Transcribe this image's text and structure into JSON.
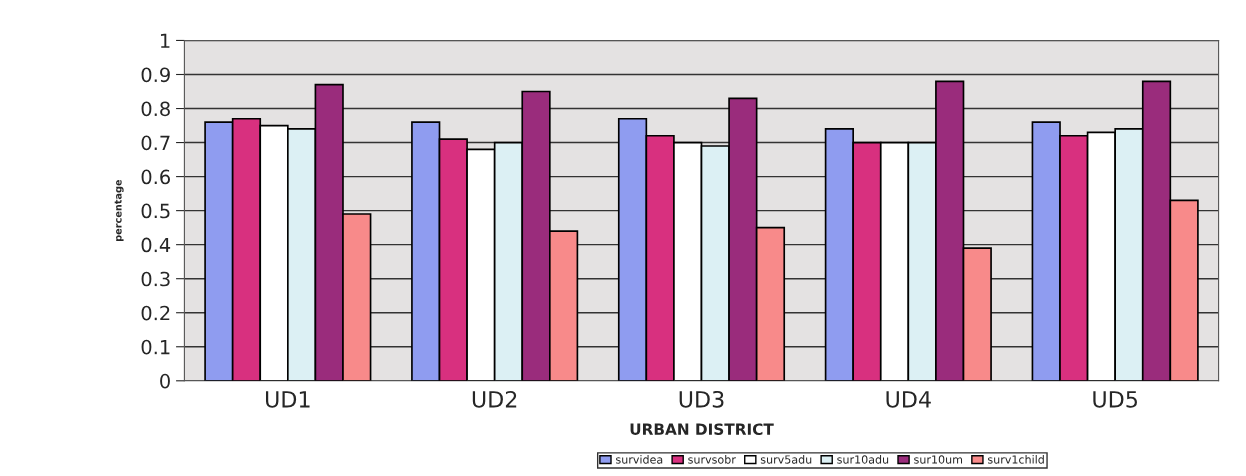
{
  "chart_data": {
    "type": "bar",
    "xlabel": "URBAN DISTRICT",
    "ylabel": "percentage",
    "categories": [
      "UD1",
      "UD2",
      "UD3",
      "UD4",
      "UD5"
    ],
    "series": [
      {
        "name": "survidea",
        "color": "#8f9cf0",
        "values": [
          0.76,
          0.76,
          0.77,
          0.74,
          0.76
        ]
      },
      {
        "name": "survsobr",
        "color": "#d8307f",
        "values": [
          0.77,
          0.71,
          0.72,
          0.7,
          0.72
        ]
      },
      {
        "name": "surv5adu",
        "color": "#ffffff",
        "values": [
          0.75,
          0.68,
          0.7,
          0.7,
          0.73
        ]
      },
      {
        "name": "sur10adu",
        "color": "#dcf0f4",
        "values": [
          0.74,
          0.7,
          0.69,
          0.7,
          0.74
        ]
      },
      {
        "name": "sur10um",
        "color": "#9a2c7c",
        "values": [
          0.87,
          0.85,
          0.83,
          0.88,
          0.88
        ]
      },
      {
        "name": "surv1child",
        "color": "#f88a8a",
        "values": [
          0.49,
          0.44,
          0.45,
          0.39,
          0.53
        ]
      }
    ],
    "ylim": [
      0,
      1
    ],
    "yticks": [
      0,
      0.1,
      0.2,
      0.3,
      0.4,
      0.5,
      0.6,
      0.7,
      0.8,
      0.9,
      1
    ],
    "grid": "y",
    "legend": "bottom"
  }
}
